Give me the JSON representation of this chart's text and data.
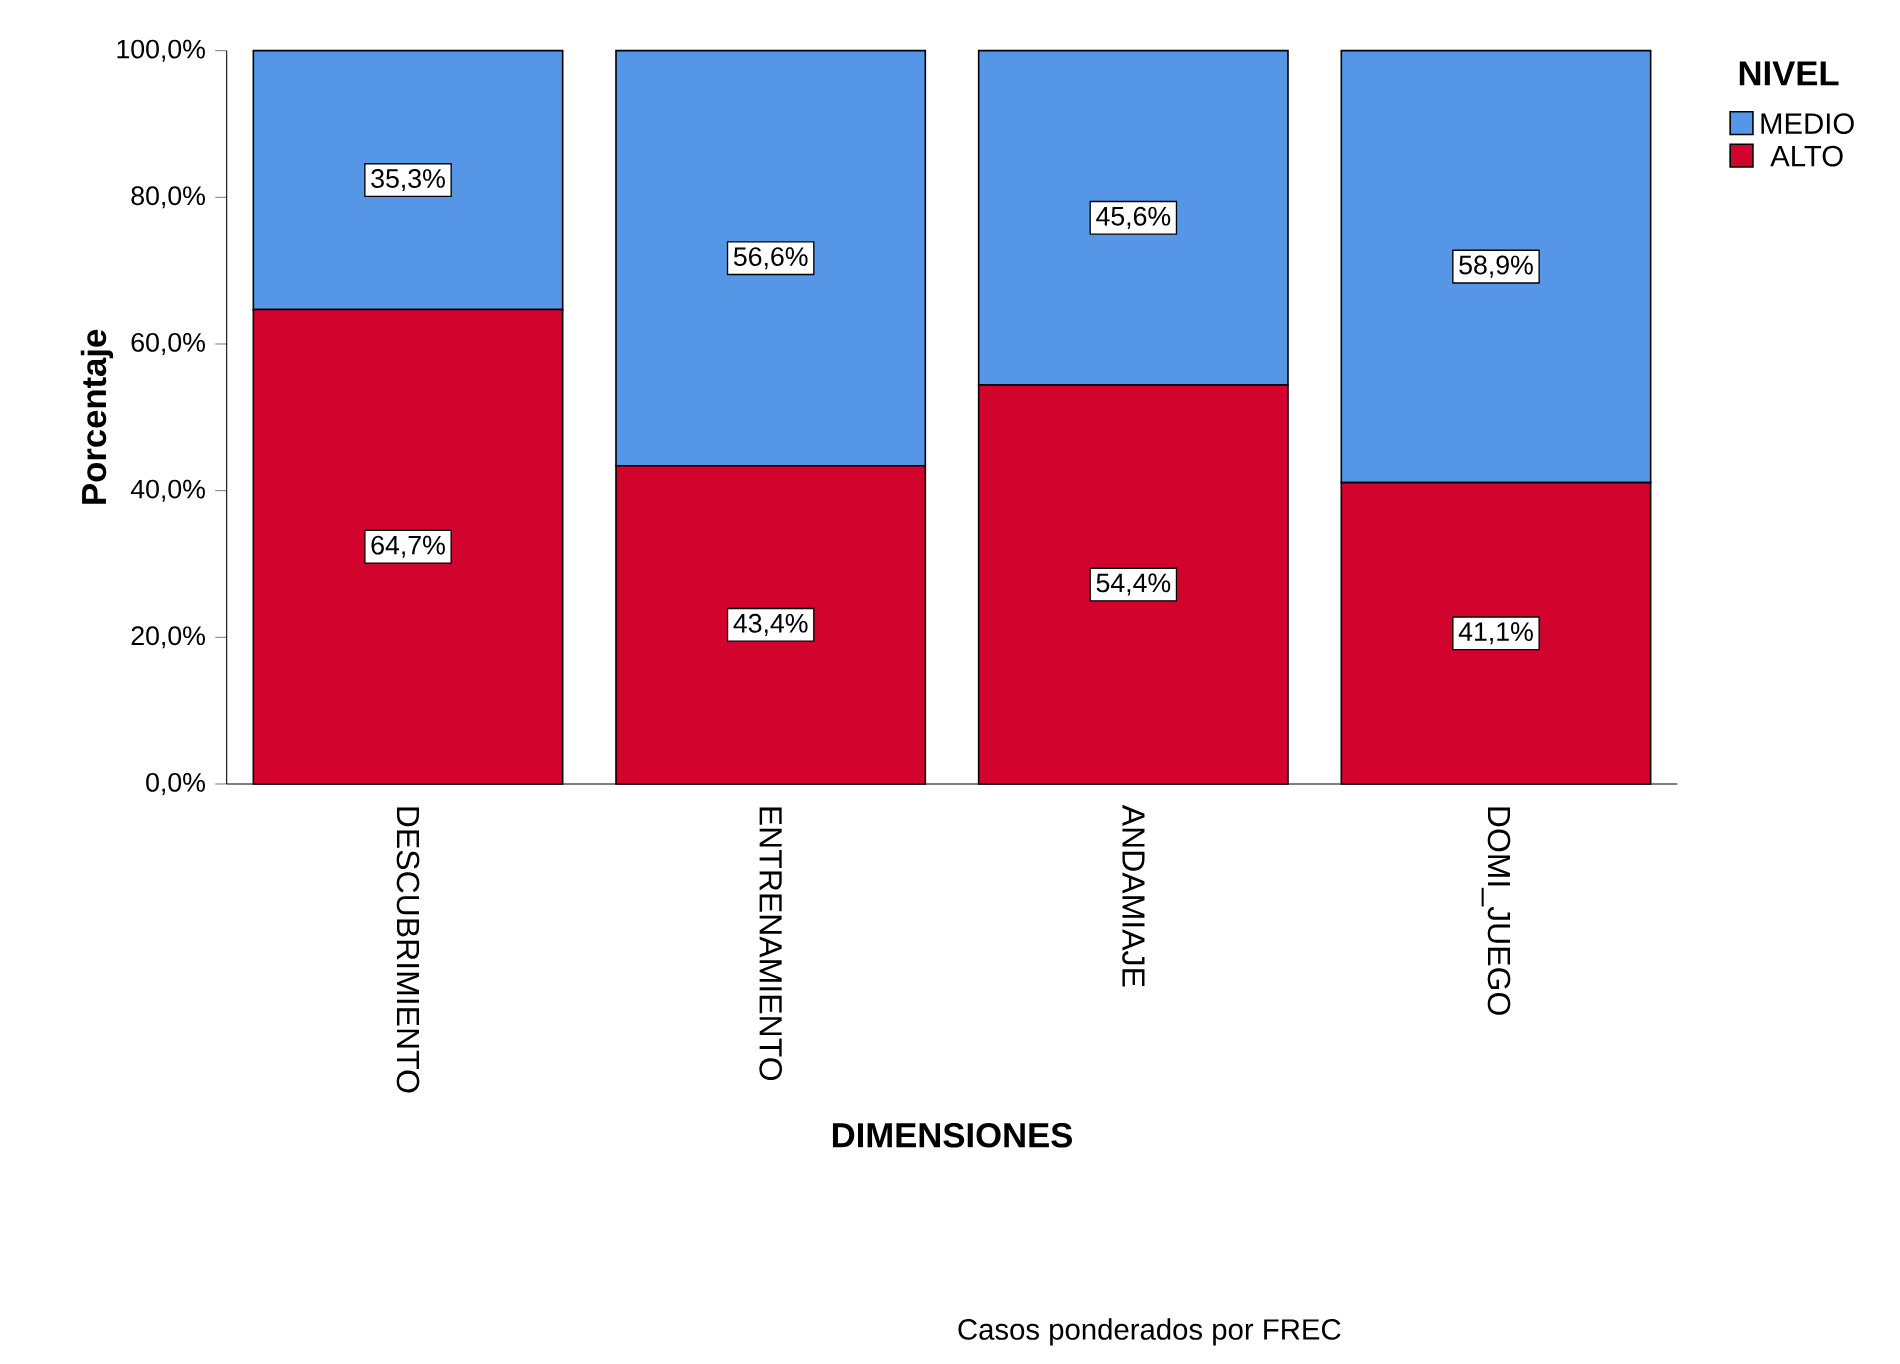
{
  "chart_data": {
    "type": "bar",
    "stacked": true,
    "xlabel": "DIMENSIONES",
    "ylabel": "Porcentaje",
    "legend_title": "NIVEL",
    "legend": "top right",
    "categories": [
      "DESCUBRIMIENTO",
      "ENTRENAMIENTO",
      "ANDAMIAJE",
      "DOMI_JUEGO"
    ],
    "series": [
      {
        "name": "ALTO",
        "color": "#d2042d",
        "values": [
          64.7,
          43.4,
          54.4,
          41.1
        ],
        "value_labels": [
          "64,7%",
          "43,4%",
          "54,4%",
          "41,1%"
        ]
      },
      {
        "name": "MEDIO",
        "color": "#5596e6",
        "values": [
          35.3,
          56.6,
          45.6,
          58.9
        ],
        "value_labels": [
          "35,3%",
          "56,6%",
          "45,6%",
          "58,9%"
        ]
      }
    ],
    "ylim": [
      0,
      100
    ],
    "yticks": [
      {
        "value": 0,
        "label": "0,0%"
      },
      {
        "value": 20,
        "label": "20,0%"
      },
      {
        "value": 40,
        "label": "40,0%"
      },
      {
        "value": 60,
        "label": "60,0%"
      },
      {
        "value": 80,
        "label": "80,0%"
      },
      {
        "value": 100,
        "label": "100,0%"
      }
    ],
    "annotations": [
      "Casos ponderados por FREC"
    ]
  }
}
